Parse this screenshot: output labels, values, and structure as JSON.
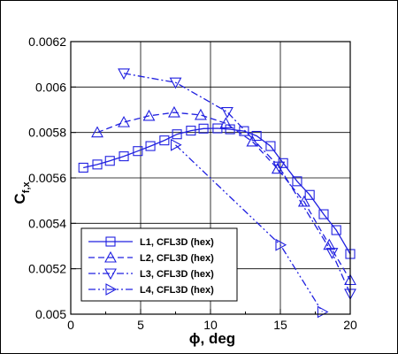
{
  "chart_data": {
    "type": "line",
    "xlabel": "ϕ, deg",
    "ylabel_main": "C",
    "ylabel_sub": "f,x",
    "xlim": [
      0,
      20
    ],
    "ylim": [
      0.005,
      0.0062
    ],
    "xticks": [
      0,
      5,
      10,
      15,
      20
    ],
    "yticks": [
      0.005,
      0.0052,
      0.0054,
      0.0056,
      0.0058,
      0.006,
      0.0062
    ],
    "ytick_labels": [
      "0.005",
      "0.0052",
      "0.0054",
      "0.0056",
      "0.0058",
      "0.006",
      "0.0062"
    ],
    "grid": true,
    "legend_position": "bottom-left",
    "color": "#2020e0",
    "series": [
      {
        "name": "L1, CFL3D (hex)",
        "marker": "square",
        "dash": "solid",
        "x": [
          0.9,
          1.9,
          2.8,
          3.8,
          4.8,
          5.7,
          6.7,
          7.6,
          8.6,
          9.5,
          10.5,
          11.4,
          12.4,
          13.3,
          14.3,
          15.2,
          16.2,
          17.1,
          18.1,
          19.0,
          20.0
        ],
        "values": [
          0.005645,
          0.005659,
          0.005675,
          0.005695,
          0.005718,
          0.00574,
          0.005765,
          0.005792,
          0.005808,
          0.005817,
          0.005818,
          0.005814,
          0.005806,
          0.005785,
          0.00574,
          0.005665,
          0.005585,
          0.005525,
          0.00544,
          0.00537,
          0.005265
        ]
      },
      {
        "name": "L2, CFL3D (hex)",
        "marker": "triangle-up",
        "dash": "dashed",
        "x": [
          1.9,
          3.8,
          5.6,
          7.4,
          9.3,
          11.1,
          13.0,
          14.8,
          16.7,
          18.5,
          20.0
        ],
        "values": [
          0.0058,
          0.005845,
          0.005873,
          0.005888,
          0.005877,
          0.00584,
          0.00576,
          0.00564,
          0.005495,
          0.005305,
          0.00515
        ]
      },
      {
        "name": "L3, CFL3D (hex)",
        "marker": "triangle-down",
        "dash": "dashdot",
        "x": [
          3.8,
          7.5,
          11.2,
          14.9,
          18.7,
          20.0
        ],
        "values": [
          0.00606,
          0.00602,
          0.00589,
          0.00565,
          0.00527,
          0.00509
        ]
      },
      {
        "name": "L4, CFL3D (hex)",
        "marker": "triangle-right",
        "dash": "dashdotdot",
        "x": [
          7.5,
          15.0,
          18.0
        ],
        "values": [
          0.005745,
          0.005305,
          0.00501
        ]
      }
    ]
  }
}
